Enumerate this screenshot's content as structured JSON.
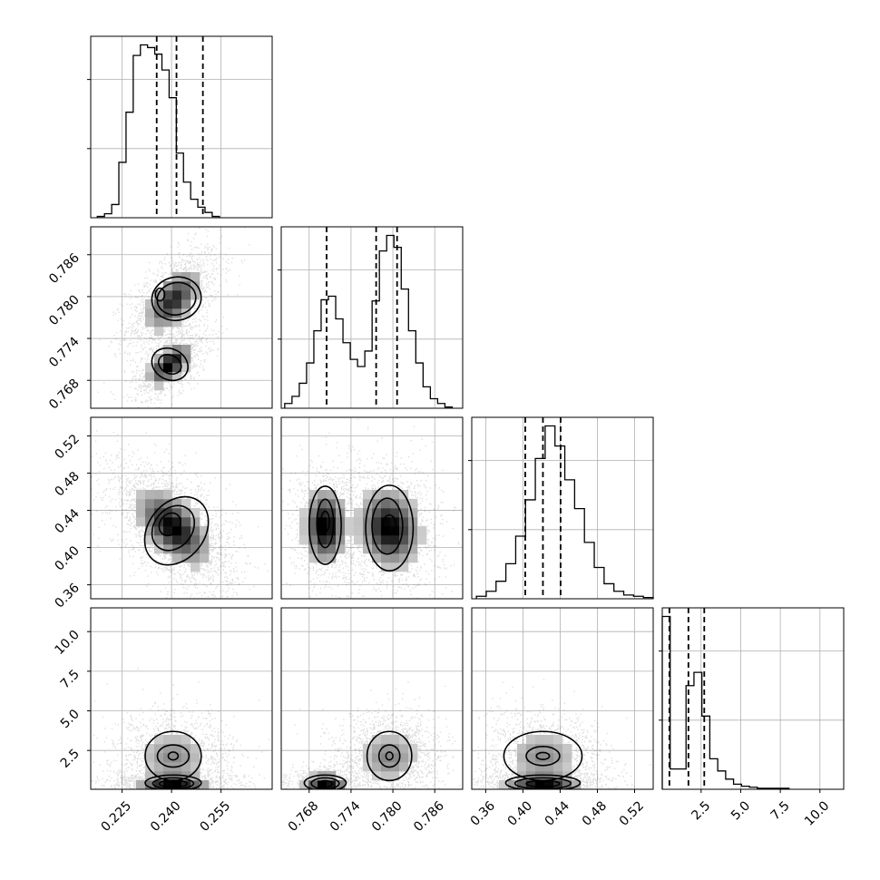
{
  "chart_data": {
    "type": "corner",
    "grid": true,
    "dims": [
      {
        "ticks": [
          "0.225",
          "0.240",
          "0.255"
        ],
        "range": [
          0.2155,
          0.2705
        ]
      },
      {
        "ticks": [
          "0.768",
          "0.774",
          "0.780",
          "0.786"
        ],
        "range": [
          0.764,
          0.79
        ]
      },
      {
        "ticks": [
          "0.36",
          "0.40",
          "0.44",
          "0.48",
          "0.52"
        ],
        "range": [
          0.345,
          0.54
        ]
      },
      {
        "ticks": [
          "2.5",
          "5.0",
          "7.5",
          "10.0"
        ],
        "range": [
          0.05,
          11.5
        ]
      }
    ],
    "y_ticks_rows": [
      [],
      [
        "0.768",
        "0.774",
        "0.780",
        "0.786"
      ],
      [
        "0.36",
        "0.40",
        "0.44",
        "0.48",
        "0.52"
      ],
      [
        "2.5",
        "5.0",
        "7.5",
        "10.0"
      ]
    ],
    "quantiles": [
      [
        0.2355,
        0.2415,
        0.2495
      ],
      [
        0.7705,
        0.7776,
        0.7806
      ],
      [
        0.4025,
        0.4215,
        0.4405
      ],
      [
        0.5,
        1.7,
        2.7
      ]
    ],
    "histograms": [
      {
        "edges": [
          0.2175,
          0.2545
        ],
        "counts": [
          1,
          3,
          10,
          42,
          80,
          123,
          131,
          129,
          124,
          112,
          91,
          49,
          27,
          14,
          8,
          4,
          1
        ]
      },
      {
        "edges": [
          0.7645,
          0.7885
        ],
        "counts": [
          4,
          10,
          21,
          38,
          65,
          91,
          94,
          75,
          55,
          41,
          35,
          48,
          90,
          132,
          145,
          135,
          100,
          65,
          38,
          18,
          8,
          4,
          1
        ]
      },
      {
        "edges": [
          0.35,
          0.54
        ],
        "counts": [
          2,
          6,
          14,
          28,
          50,
          79,
          112,
          138,
          122,
          95,
          72,
          45,
          25,
          12,
          6,
          3,
          2,
          1
        ]
      },
      {
        "edges": [
          0.05,
          8.05
        ],
        "counts": [
          170,
          20,
          20,
          102,
          115,
          72,
          30,
          18,
          10,
          5,
          3,
          2,
          1,
          1,
          1,
          1
        ]
      }
    ],
    "density_components": [
      {
        "row": 1,
        "col": 0,
        "w": 0.6,
        "mx": 0.2405,
        "my": 0.7795,
        "sx": 0.0042,
        "sy": 0.0022,
        "rho": 0.55
      },
      {
        "row": 1,
        "col": 0,
        "w": 0.4,
        "mx": 0.2395,
        "my": 0.7703,
        "sx": 0.0033,
        "sy": 0.0015,
        "rho": 0.6
      },
      {
        "row": 2,
        "col": 0,
        "w": 1.0,
        "mx": 0.2405,
        "my": 0.4215,
        "sx": 0.0055,
        "sy": 0.02,
        "rho": -0.55
      },
      {
        "row": 2,
        "col": 1,
        "w": 0.4,
        "mx": 0.7703,
        "my": 0.423,
        "sx": 0.0015,
        "sy": 0.02,
        "rho": 0.0
      },
      {
        "row": 2,
        "col": 1,
        "w": 0.6,
        "mx": 0.7795,
        "my": 0.421,
        "sx": 0.0022,
        "sy": 0.021,
        "rho": -0.1
      },
      {
        "row": 3,
        "col": 0,
        "w": 0.5,
        "mx": 0.2405,
        "my": 2.1,
        "sx": 0.0055,
        "sy": 0.85,
        "rho": 0.0
      },
      {
        "row": 3,
        "col": 0,
        "w": 0.5,
        "mx": 0.2405,
        "my": 0.4,
        "sx": 0.0055,
        "sy": 0.3,
        "rho": 0.0
      },
      {
        "row": 3,
        "col": 1,
        "w": 0.4,
        "mx": 0.7703,
        "my": 0.4,
        "sx": 0.0015,
        "sy": 0.3,
        "rho": 0.0
      },
      {
        "row": 3,
        "col": 1,
        "w": 0.6,
        "mx": 0.7795,
        "my": 2.1,
        "sx": 0.0022,
        "sy": 0.85,
        "rho": 0.0
      },
      {
        "row": 3,
        "col": 2,
        "w": 0.5,
        "mx": 0.4215,
        "my": 2.1,
        "sx": 0.02,
        "sy": 0.85,
        "rho": 0.0
      },
      {
        "row": 3,
        "col": 2,
        "w": 0.5,
        "mx": 0.4215,
        "my": 0.4,
        "sx": 0.02,
        "sy": 0.3,
        "rho": 0.0
      }
    ],
    "contour_levels": [
      {
        "row": 1,
        "col": 0,
        "ellipses": [
          {
            "mx": 0.2415,
            "my": 0.7797,
            "rx": 0.0075,
            "ry": 0.0031,
            "rot": -12
          },
          {
            "mx": 0.2415,
            "my": 0.7797,
            "rx": 0.0059,
            "ry": 0.0023,
            "rot": -12
          },
          {
            "mx": 0.2365,
            "my": 0.7803,
            "rx": 0.0014,
            "ry": 0.0009,
            "rot": 0
          },
          {
            "mx": 0.2395,
            "my": 0.7703,
            "rx": 0.0057,
            "ry": 0.0022,
            "rot": 28
          },
          {
            "mx": 0.2395,
            "my": 0.7703,
            "rx": 0.0036,
            "ry": 0.0013,
            "rot": 28
          }
        ]
      },
      {
        "row": 2,
        "col": 0,
        "ellipses": [
          {
            "mx": 0.2415,
            "my": 0.418,
            "rx": 0.0085,
            "ry": 0.04,
            "rot": 38
          },
          {
            "mx": 0.2405,
            "my": 0.421,
            "rx": 0.0058,
            "ry": 0.026,
            "rot": 38
          },
          {
            "mx": 0.2395,
            "my": 0.425,
            "rx": 0.003,
            "ry": 0.013,
            "rot": 38
          }
        ]
      },
      {
        "row": 2,
        "col": 1,
        "ellipses": [
          {
            "mx": 0.7703,
            "my": 0.424,
            "rx": 0.0023,
            "ry": 0.042,
            "rot": 0
          },
          {
            "mx": 0.7703,
            "my": 0.426,
            "rx": 0.0012,
            "ry": 0.026,
            "rot": 0
          },
          {
            "mx": 0.7703,
            "my": 0.428,
            "rx": 0.0006,
            "ry": 0.011,
            "rot": 0
          },
          {
            "mx": 0.7795,
            "my": 0.421,
            "rx": 0.0034,
            "ry": 0.046,
            "rot": 0
          },
          {
            "mx": 0.7792,
            "my": 0.423,
            "rx": 0.0022,
            "ry": 0.03,
            "rot": 0
          },
          {
            "mx": 0.7795,
            "my": 0.425,
            "rx": 0.0009,
            "ry": 0.01,
            "rot": 0
          }
        ]
      },
      {
        "row": 3,
        "col": 0,
        "ellipses": [
          {
            "mx": 0.2405,
            "my": 2.15,
            "rx": 0.0085,
            "ry": 1.55,
            "rot": 0
          },
          {
            "mx": 0.2405,
            "my": 2.15,
            "rx": 0.0048,
            "ry": 0.7,
            "rot": 0
          },
          {
            "mx": 0.2405,
            "my": 2.15,
            "rx": 0.0015,
            "ry": 0.25,
            "rot": 0
          },
          {
            "mx": 0.2405,
            "my": 0.45,
            "rx": 0.0085,
            "ry": 0.5,
            "rot": 0
          },
          {
            "mx": 0.2405,
            "my": 0.42,
            "rx": 0.0062,
            "ry": 0.35,
            "rot": 0
          },
          {
            "mx": 0.2405,
            "my": 0.4,
            "rx": 0.0042,
            "ry": 0.22,
            "rot": 0
          }
        ]
      },
      {
        "row": 3,
        "col": 1,
        "ellipses": [
          {
            "mx": 0.7795,
            "my": 2.15,
            "rx": 0.0032,
            "ry": 1.55,
            "rot": 0
          },
          {
            "mx": 0.7795,
            "my": 2.15,
            "rx": 0.0015,
            "ry": 0.7,
            "rot": 0
          },
          {
            "mx": 0.7795,
            "my": 2.15,
            "rx": 0.0005,
            "ry": 0.25,
            "rot": 0
          },
          {
            "mx": 0.7703,
            "my": 0.45,
            "rx": 0.003,
            "ry": 0.5,
            "rot": 0
          },
          {
            "mx": 0.7703,
            "my": 0.42,
            "rx": 0.002,
            "ry": 0.35,
            "rot": 0
          },
          {
            "mx": 0.7703,
            "my": 0.4,
            "rx": 0.001,
            "ry": 0.2,
            "rot": 0
          }
        ]
      },
      {
        "row": 3,
        "col": 2,
        "ellipses": [
          {
            "mx": 0.4215,
            "my": 2.15,
            "rx": 0.042,
            "ry": 1.55,
            "rot": 0
          },
          {
            "mx": 0.4215,
            "my": 2.15,
            "rx": 0.018,
            "ry": 0.6,
            "rot": 0
          },
          {
            "mx": 0.4215,
            "my": 2.15,
            "rx": 0.007,
            "ry": 0.22,
            "rot": 0
          },
          {
            "mx": 0.4215,
            "my": 0.45,
            "rx": 0.04,
            "ry": 0.5,
            "rot": 0
          },
          {
            "mx": 0.4215,
            "my": 0.42,
            "rx": 0.03,
            "ry": 0.35,
            "rot": 0
          },
          {
            "mx": 0.4215,
            "my": 0.4,
            "rx": 0.018,
            "ry": 0.2,
            "rot": 0
          }
        ]
      }
    ],
    "colors": {
      "line": "#000000",
      "grid": "#b0b0b0",
      "points": "#000000",
      "fill_light": "#f2f2f2"
    }
  }
}
